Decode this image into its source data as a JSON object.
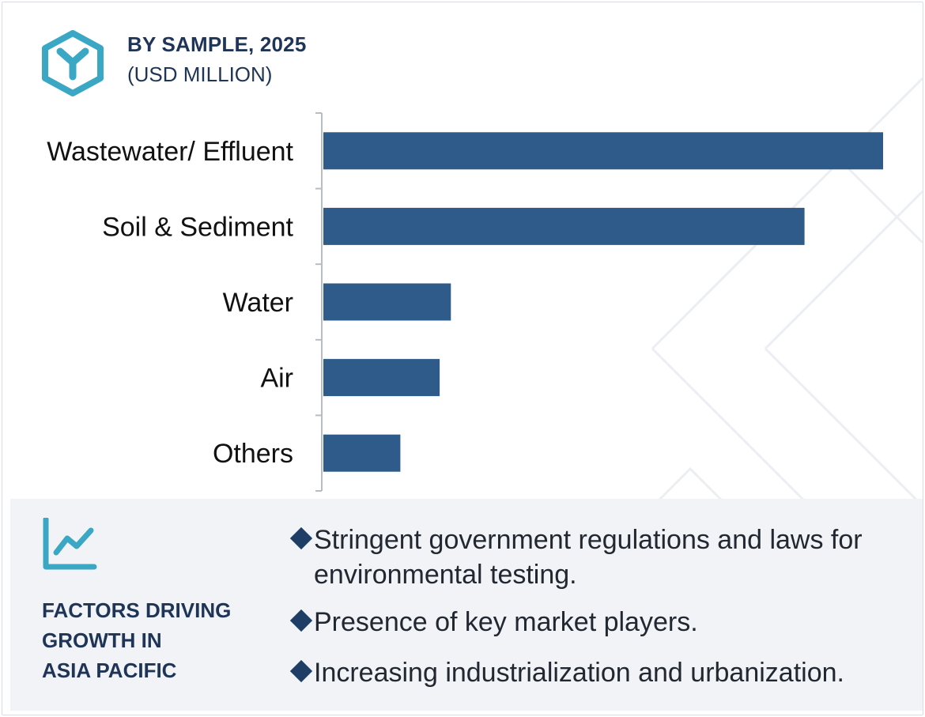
{
  "header": {
    "title": "BY SAMPLE, 2025",
    "subtitle": "(USD MILLION)"
  },
  "colors": {
    "bar": "#2e5b8a",
    "title": "#1f3557",
    "accent_icon": "#3aa8c4",
    "panel_bg": "#f1f3f6"
  },
  "icons": {
    "logo": "hexagon-y-logo-icon",
    "trend": "line-trend-icon",
    "bullet": "diamond-bullet-icon"
  },
  "chart_data": {
    "type": "bar",
    "orientation": "horizontal",
    "categories": [
      "Wastewater/ Effluent",
      "Soil & Sediment",
      "Water",
      "Air",
      "Others"
    ],
    "values": [
      100,
      86,
      23,
      21,
      14
    ],
    "title": "BY SAMPLE, 2025",
    "xlabel": "",
    "ylabel": "",
    "xlim": [
      0,
      100
    ],
    "grid": false,
    "legend": "none"
  },
  "factors": {
    "title_lines": [
      "FACTORS DRIVING",
      "GROWTH IN",
      "ASIA PACIFIC"
    ],
    "items": [
      "Stringent government regulations and laws for environmental testing.",
      "Presence of key market players.",
      "Increasing industrialization and urbanization."
    ]
  }
}
